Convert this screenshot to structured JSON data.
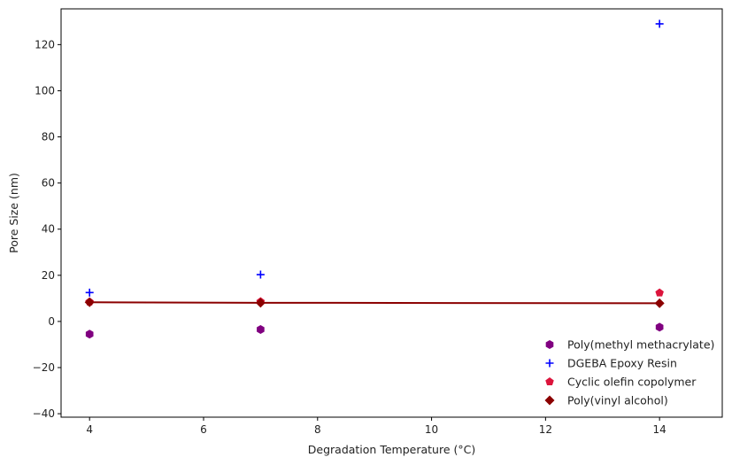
{
  "chart_data": {
    "type": "scatter",
    "title": "",
    "xlabel": "Degradation Temperature (°C)",
    "ylabel": "Pore Size (nm)",
    "xlim": [
      3.5,
      15.1
    ],
    "ylim": [
      -41.5,
      135.5
    ],
    "xticks": [
      4,
      6,
      8,
      10,
      12,
      14
    ],
    "yticks": [
      -40,
      -20,
      0,
      20,
      40,
      60,
      80,
      100,
      120
    ],
    "grid": false,
    "legend_position": "lower-right",
    "series": [
      {
        "name": "Poly(methyl methacrylate)",
        "marker": "hexagon",
        "color": "#800080",
        "x": [
          4,
          7,
          14
        ],
        "y": [
          -5.5,
          -3.5,
          -2.5
        ]
      },
      {
        "name": "DGEBA Epoxy Resin",
        "marker": "plus",
        "color": "#0000ff",
        "x": [
          4,
          7,
          14
        ],
        "y": [
          12.5,
          20.3,
          129.0
        ]
      },
      {
        "name": "Cyclic olefin copolymer",
        "marker": "pentagon",
        "color": "#dc143c",
        "x": [
          4,
          7,
          14
        ],
        "y": [
          8.5,
          8.6,
          12.4
        ]
      },
      {
        "name": "Poly(vinyl alcohol)",
        "marker": "diamond",
        "color": "#8b0000",
        "x": [
          4,
          7,
          14
        ],
        "y": [
          8.3,
          8.1,
          7.9
        ]
      }
    ],
    "trend_line": {
      "color": "#8b0000",
      "x": [
        4,
        7,
        14
      ],
      "y": [
        8.3,
        8.1,
        7.9
      ]
    }
  }
}
